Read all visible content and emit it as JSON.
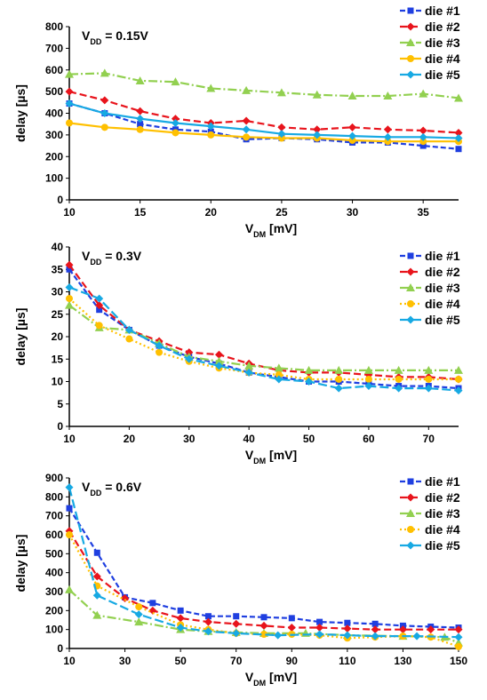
{
  "colors": {
    "die1": "#1f3fe0",
    "die2": "#e8141c",
    "die3": "#92d050",
    "die4": "#ffc000",
    "die5": "#17a9e3"
  },
  "chart_data": [
    {
      "type": "line",
      "annotation": {
        "prefix": "V",
        "sub": "DD",
        "suffix": " = 0.15V"
      },
      "xlabel": {
        "prefix": "V",
        "sub": "DM",
        "suffix": " [mV]"
      },
      "ylabel": "delay [µs]",
      "xlim": [
        10,
        37.5
      ],
      "ylim": [
        0,
        800
      ],
      "xticks": [
        10,
        15,
        20,
        25,
        30,
        35
      ],
      "yticks": [
        0,
        100,
        200,
        300,
        400,
        500,
        600,
        700,
        800
      ],
      "legend_position": "top-right",
      "series": [
        {
          "name": "die #1",
          "marker": "square",
          "dash": "6,3",
          "x": [
            10,
            12.5,
            15,
            17.5,
            20,
            22.5,
            25,
            27.5,
            30,
            32.5,
            35,
            37.5
          ],
          "y": [
            445,
            400,
            350,
            325,
            315,
            280,
            285,
            280,
            265,
            265,
            250,
            235
          ]
        },
        {
          "name": "die #2",
          "marker": "diamond",
          "dash": "8,4",
          "x": [
            10,
            12.5,
            15,
            17.5,
            20,
            22.5,
            25,
            27.5,
            30,
            32.5,
            35,
            37.5
          ],
          "y": [
            500,
            460,
            410,
            375,
            355,
            365,
            335,
            325,
            335,
            325,
            320,
            310
          ]
        },
        {
          "name": "die #3",
          "marker": "triangle",
          "dash": "10,3,2,3",
          "x": [
            10,
            12.5,
            15,
            17.5,
            20,
            22.5,
            25,
            27.5,
            30,
            32.5,
            35,
            37.5
          ],
          "y": [
            580,
            585,
            550,
            545,
            515,
            505,
            495,
            485,
            480,
            480,
            490,
            470
          ]
        },
        {
          "name": "die #4",
          "marker": "circle",
          "dash": "",
          "x": [
            10,
            12.5,
            15,
            17.5,
            20,
            22.5,
            25,
            27.5,
            30,
            32.5,
            35,
            37.5
          ],
          "y": [
            355,
            335,
            325,
            310,
            300,
            290,
            285,
            285,
            275,
            270,
            270,
            270
          ]
        },
        {
          "name": "die #5",
          "marker": "diamond",
          "dash": "",
          "x": [
            10,
            12.5,
            15,
            17.5,
            20,
            22.5,
            25,
            27.5,
            30,
            32.5,
            35,
            37.5
          ],
          "y": [
            445,
            400,
            375,
            355,
            340,
            325,
            305,
            300,
            295,
            290,
            290,
            285
          ]
        }
      ]
    },
    {
      "type": "line",
      "annotation": {
        "prefix": "V",
        "sub": "DD",
        "suffix": " = 0.3V"
      },
      "xlabel": {
        "prefix": "V",
        "sub": "DM",
        "suffix": " [mV]"
      },
      "ylabel": "delay [µs]",
      "xlim": [
        10,
        75
      ],
      "ylim": [
        0,
        40
      ],
      "xticks": [
        10,
        20,
        30,
        40,
        50,
        60,
        70
      ],
      "yticks": [
        0,
        5,
        10,
        15,
        20,
        25,
        30,
        35,
        40
      ],
      "legend_position": "top-right",
      "series": [
        {
          "name": "die #1",
          "marker": "square",
          "dash": "6,3",
          "x": [
            10,
            15,
            20,
            25,
            30,
            35,
            40,
            45,
            50,
            55,
            60,
            65,
            70,
            75
          ],
          "y": [
            35,
            26,
            21.5,
            18,
            15.5,
            14,
            12,
            11,
            10,
            10,
            9.5,
            9,
            9,
            8.5
          ]
        },
        {
          "name": "die #2",
          "marker": "diamond",
          "dash": "8,4",
          "x": [
            10,
            15,
            20,
            25,
            30,
            35,
            40,
            45,
            50,
            55,
            60,
            65,
            70,
            75
          ],
          "y": [
            36,
            27,
            21.5,
            19,
            16.5,
            16,
            14,
            12.5,
            12,
            12,
            11.5,
            11,
            11,
            10.5
          ]
        },
        {
          "name": "die #3",
          "marker": "triangle",
          "dash": "10,3,2,3",
          "x": [
            10,
            15,
            20,
            25,
            30,
            35,
            40,
            45,
            50,
            55,
            60,
            65,
            70,
            75
          ],
          "y": [
            27,
            22,
            21.5,
            18.5,
            15.5,
            14.5,
            13.5,
            13,
            12.5,
            12.5,
            12.5,
            12.5,
            12.5,
            12.5
          ]
        },
        {
          "name": "die #4",
          "marker": "circle",
          "dash": "2,3",
          "x": [
            10,
            15,
            20,
            25,
            30,
            35,
            40,
            45,
            50,
            55,
            60,
            65,
            70,
            75
          ],
          "y": [
            28.5,
            22.5,
            19.5,
            16.5,
            14.5,
            13,
            12,
            11.5,
            10.5,
            10.5,
            10.5,
            10.5,
            10.5,
            10.5
          ]
        },
        {
          "name": "die #5",
          "marker": "diamond",
          "dash": "10,4",
          "x": [
            10,
            15,
            20,
            25,
            30,
            35,
            40,
            45,
            50,
            55,
            60,
            65,
            70,
            75
          ],
          "y": [
            31,
            28.5,
            21.5,
            18,
            15,
            13.5,
            12,
            10.5,
            10,
            8.5,
            9,
            8.5,
            8.5,
            8
          ]
        }
      ]
    },
    {
      "type": "line",
      "annotation": {
        "prefix": "V",
        "sub": "DD",
        "suffix": " = 0.6V"
      },
      "xlabel": {
        "prefix": "V",
        "sub": "DM",
        "suffix": " [mV]"
      },
      "ylabel": "delay [µs]",
      "xlim": [
        10,
        150
      ],
      "ylim": [
        0,
        900
      ],
      "xticks": [
        10,
        30,
        50,
        70,
        90,
        110,
        130,
        150
      ],
      "yticks": [
        0,
        100,
        200,
        300,
        400,
        500,
        600,
        700,
        800,
        900
      ],
      "legend_position": "top-right",
      "series": [
        {
          "name": "die #1",
          "marker": "square",
          "dash": "6,3",
          "x": [
            10,
            20,
            30,
            40,
            50,
            60,
            70,
            80,
            90,
            100,
            110,
            120,
            130,
            140,
            150
          ],
          "y": [
            740,
            505,
            270,
            240,
            200,
            170,
            170,
            165,
            160,
            140,
            135,
            130,
            120,
            115,
            110
          ]
        },
        {
          "name": "die #2",
          "marker": "diamond",
          "dash": "8,4",
          "x": [
            10,
            20,
            30,
            40,
            50,
            60,
            70,
            80,
            90,
            100,
            110,
            120,
            130,
            140,
            150
          ],
          "y": [
            620,
            380,
            265,
            200,
            160,
            140,
            130,
            120,
            110,
            110,
            105,
            100,
            100,
            100,
            100
          ]
        },
        {
          "name": "die #3",
          "marker": "triangle",
          "dash": "10,3,2,3",
          "x": [
            10,
            20,
            35,
            50,
            60,
            70,
            80,
            95,
            110,
            130,
            145,
            150
          ],
          "y": [
            310,
            175,
            140,
            100,
            90,
            85,
            80,
            80,
            70,
            65,
            60,
            30
          ]
        },
        {
          "name": "die #4",
          "marker": "circle",
          "dash": "2,3",
          "x": [
            10,
            20,
            35,
            50,
            60,
            70,
            80,
            90,
            100,
            110,
            120,
            130,
            140,
            150
          ],
          "y": [
            600,
            330,
            220,
            125,
            100,
            80,
            75,
            75,
            70,
            55,
            60,
            65,
            60,
            10
          ]
        },
        {
          "name": "die #5",
          "marker": "diamond",
          "dash": "10,4",
          "x": [
            10,
            20,
            35,
            50,
            60,
            70,
            85,
            100,
            110,
            120,
            135,
            150
          ],
          "y": [
            850,
            280,
            180,
            110,
            90,
            80,
            70,
            75,
            70,
            65,
            65,
            60
          ]
        }
      ]
    }
  ]
}
